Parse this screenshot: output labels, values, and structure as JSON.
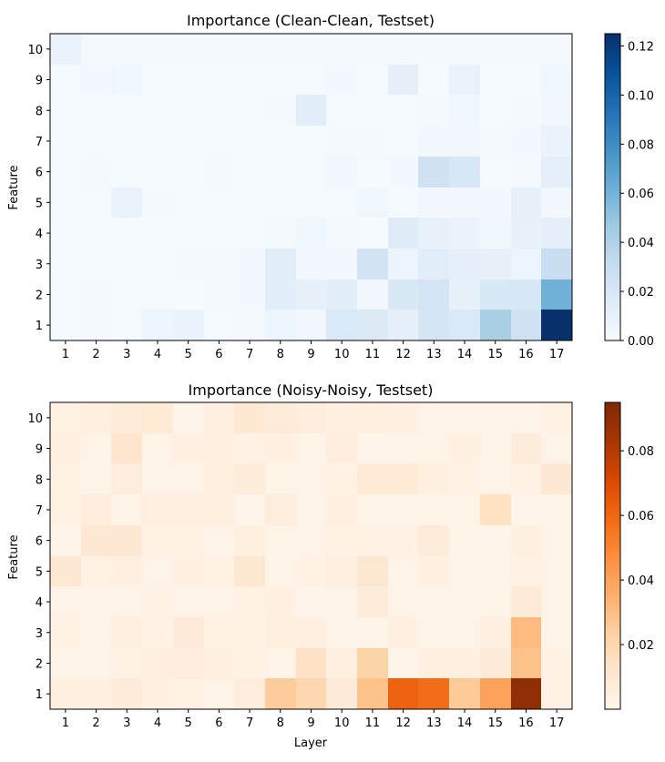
{
  "chart_data": [
    {
      "type": "heatmap",
      "title": "Importance (Clean-Clean, Testset)",
      "xlabel": "",
      "ylabel": "Feature",
      "x_categories": [
        "1",
        "2",
        "3",
        "4",
        "5",
        "6",
        "7",
        "8",
        "9",
        "10",
        "11",
        "12",
        "13",
        "14",
        "15",
        "16",
        "17"
      ],
      "y_categories": [
        "10",
        "9",
        "8",
        "7",
        "6",
        "5",
        "4",
        "3",
        "2",
        "1"
      ],
      "colormap": "Blues",
      "colors": [
        "#f7fbff",
        "#deebf7",
        "#c6dbef",
        "#9ecae1",
        "#6baed6",
        "#4292c6",
        "#2171b5",
        "#08519c",
        "#08306b"
      ],
      "vmin": 0.0,
      "vmax": 0.125,
      "colorbar_ticks": [
        "0.00",
        "0.02",
        "0.04",
        "0.06",
        "0.08",
        "0.10",
        "0.12"
      ],
      "colorbar_tick_values": [
        0.0,
        0.02,
        0.04,
        0.06,
        0.08,
        0.1,
        0.12
      ],
      "values": [
        [
          0.008,
          0.002,
          0.002,
          0.002,
          0.002,
          0.002,
          0.002,
          0.002,
          0.002,
          0.002,
          0.002,
          0.002,
          0.002,
          0.002,
          0.002,
          0.002,
          0.002
        ],
        [
          0.001,
          0.003,
          0.005,
          0.001,
          0.001,
          0.001,
          0.001,
          0.001,
          0.001,
          0.003,
          0.001,
          0.012,
          0.001,
          0.008,
          0.001,
          0.001,
          0.005
        ],
        [
          0.001,
          0.001,
          0.001,
          0.001,
          0.001,
          0.001,
          0.001,
          0.002,
          0.014,
          0.001,
          0.001,
          0.001,
          0.002,
          0.005,
          0.001,
          0.002,
          0.004
        ],
        [
          0.001,
          0.001,
          0.001,
          0.001,
          0.001,
          0.001,
          0.001,
          0.001,
          0.001,
          0.002,
          0.002,
          0.001,
          0.004,
          0.004,
          0.002,
          0.003,
          0.008
        ],
        [
          0.001,
          0.002,
          0.001,
          0.001,
          0.001,
          0.002,
          0.001,
          0.001,
          0.001,
          0.004,
          0.001,
          0.003,
          0.025,
          0.02,
          0.001,
          0.002,
          0.012
        ],
        [
          0.001,
          0.001,
          0.008,
          0.002,
          0.001,
          0.001,
          0.001,
          0.001,
          0.001,
          0.001,
          0.005,
          0.001,
          0.004,
          0.004,
          0.003,
          0.011,
          0.004
        ],
        [
          0.001,
          0.001,
          0.001,
          0.001,
          0.001,
          0.001,
          0.001,
          0.002,
          0.005,
          0.002,
          0.001,
          0.015,
          0.01,
          0.008,
          0.005,
          0.01,
          0.012
        ],
        [
          0.001,
          0.001,
          0.001,
          0.001,
          0.002,
          0.002,
          0.003,
          0.014,
          0.003,
          0.003,
          0.023,
          0.006,
          0.014,
          0.012,
          0.011,
          0.006,
          0.028
        ],
        [
          0.001,
          0.002,
          0.001,
          0.001,
          0.001,
          0.002,
          0.003,
          0.014,
          0.011,
          0.013,
          0.004,
          0.019,
          0.022,
          0.011,
          0.019,
          0.02,
          0.061
        ],
        [
          0.001,
          0.002,
          0.001,
          0.006,
          0.008,
          0.001,
          0.002,
          0.006,
          0.004,
          0.018,
          0.017,
          0.012,
          0.021,
          0.018,
          0.042,
          0.025,
          0.125
        ]
      ]
    },
    {
      "type": "heatmap",
      "title": "Importance (Noisy-Noisy, Testset)",
      "xlabel": "Layer",
      "ylabel": "Feature",
      "x_categories": [
        "1",
        "2",
        "3",
        "4",
        "5",
        "6",
        "7",
        "8",
        "9",
        "10",
        "11",
        "12",
        "13",
        "14",
        "15",
        "16",
        "17"
      ],
      "y_categories": [
        "10",
        "9",
        "8",
        "7",
        "6",
        "5",
        "4",
        "3",
        "2",
        "1"
      ],
      "colormap": "Oranges",
      "colors": [
        "#fff5eb",
        "#fee6ce",
        "#fdd0a2",
        "#fdae6b",
        "#fd8d3c",
        "#f16913",
        "#d94801",
        "#a63603",
        "#7f2704"
      ],
      "vmin": 0.0,
      "vmax": 0.095,
      "colorbar_ticks": [
        "0.02",
        "0.04",
        "0.06",
        "0.08"
      ],
      "colorbar_tick_values": [
        0.02,
        0.04,
        0.06,
        0.08
      ],
      "values": [
        [
          0.003,
          0.005,
          0.007,
          0.009,
          0.001,
          0.004,
          0.01,
          0.007,
          0.006,
          0.004,
          0.005,
          0.004,
          0.002,
          0.002,
          0.002,
          0.002,
          0.003
        ],
        [
          0.004,
          0.002,
          0.012,
          0.002,
          0.004,
          0.004,
          0.003,
          0.004,
          0.002,
          0.006,
          0.001,
          0.002,
          0.002,
          0.004,
          0.002,
          0.007,
          0.002
        ],
        [
          0.003,
          0.002,
          0.006,
          0.002,
          0.002,
          0.005,
          0.007,
          0.002,
          0.002,
          0.003,
          0.009,
          0.009,
          0.005,
          0.003,
          0.002,
          0.003,
          0.01
        ],
        [
          0.003,
          0.006,
          0.002,
          0.005,
          0.005,
          0.005,
          0.001,
          0.006,
          0.002,
          0.004,
          0.002,
          0.002,
          0.002,
          0.002,
          0.015,
          0.001,
          0.002
        ],
        [
          0.002,
          0.01,
          0.01,
          0.003,
          0.003,
          0.002,
          0.005,
          0.002,
          0.002,
          0.003,
          0.003,
          0.003,
          0.007,
          0.002,
          0.001,
          0.005,
          0.002
        ],
        [
          0.01,
          0.003,
          0.004,
          0.002,
          0.004,
          0.003,
          0.011,
          0.002,
          0.003,
          0.005,
          0.011,
          0.002,
          0.004,
          0.002,
          0.002,
          0.003,
          0.002
        ],
        [
          0.002,
          0.002,
          0.002,
          0.003,
          0.002,
          0.002,
          0.003,
          0.004,
          0.001,
          0.002,
          0.007,
          0.002,
          0.002,
          0.002,
          0.002,
          0.008,
          0.002
        ],
        [
          0.003,
          0.002,
          0.005,
          0.003,
          0.008,
          0.003,
          0.003,
          0.005,
          0.004,
          0.002,
          0.002,
          0.004,
          0.002,
          0.002,
          0.004,
          0.031,
          0.002
        ],
        [
          0.002,
          0.002,
          0.003,
          0.004,
          0.006,
          0.005,
          0.003,
          0.002,
          0.014,
          0.004,
          0.022,
          0.001,
          0.004,
          0.004,
          0.008,
          0.029,
          0.003
        ],
        [
          0.005,
          0.004,
          0.007,
          0.004,
          0.003,
          0.002,
          0.006,
          0.025,
          0.02,
          0.008,
          0.029,
          0.062,
          0.058,
          0.026,
          0.04,
          0.09,
          0.003
        ]
      ]
    }
  ]
}
